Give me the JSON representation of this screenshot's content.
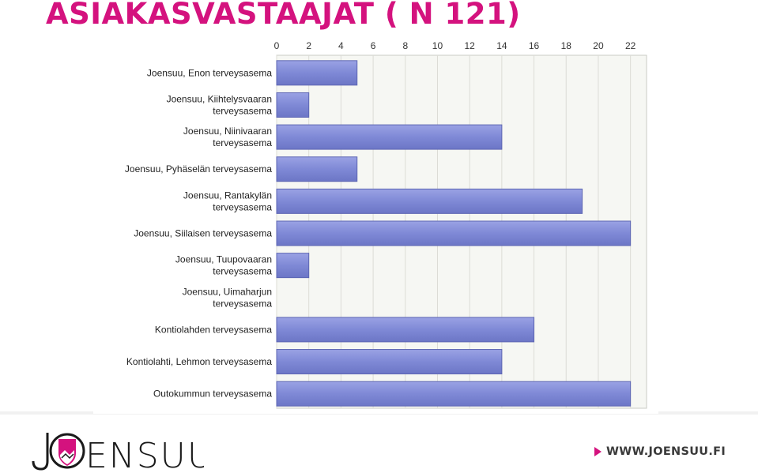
{
  "slide": {
    "title": "ASIAKASVASTAAJAT ( N 121)",
    "logo_text": "JOENSUU",
    "website": "WWW.JOENSUU.FI",
    "accent_color": "#d4127e"
  },
  "chart_data": {
    "type": "bar",
    "orientation": "horizontal",
    "categories": [
      [
        "Joensuu, Enon terveysasema"
      ],
      [
        "Joensuu, Kiihtelysvaaran",
        "terveysasema"
      ],
      [
        "Joensuu, Niinivaaran",
        "terveysasema"
      ],
      [
        "Joensuu, Pyhäselän terveysasema"
      ],
      [
        "Joensuu, Rantakylän",
        "terveysasema"
      ],
      [
        "Joensuu, Siilaisen terveysasema"
      ],
      [
        "Joensuu, Tuupovaaran",
        "terveysasema"
      ],
      [
        "Joensuu, Uimaharjun",
        "terveysasema"
      ],
      [
        "Kontiolahden terveysasema"
      ],
      [
        "Kontiolahti, Lehmon terveysasema"
      ],
      [
        "Outokummun terveysasema"
      ]
    ],
    "values": [
      5,
      2,
      14,
      5,
      19,
      22,
      2,
      0,
      16,
      14,
      22
    ],
    "xlim": [
      0,
      23
    ],
    "ticks": [
      0,
      2,
      4,
      6,
      8,
      10,
      12,
      14,
      16,
      18,
      20,
      22
    ],
    "axis_position": "top",
    "grid": true,
    "bar_color": "#7f89d6",
    "bar_edge_color": "#5d66b3"
  }
}
